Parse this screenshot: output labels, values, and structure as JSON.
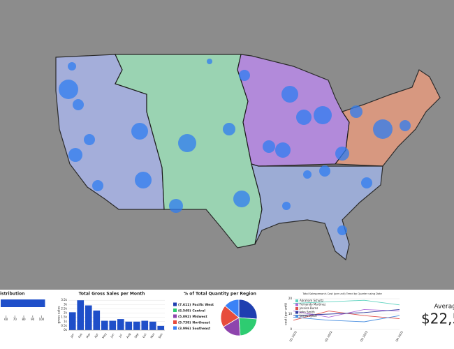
{
  "chart_data": [
    {
      "type": "hbar",
      "title": "istribution",
      "values": [
        104
      ],
      "color": "#1f4fc9",
      "xlim": [
        54,
        106
      ],
      "xticks": [
        60,
        70,
        80,
        90,
        100
      ]
    },
    {
      "type": "bar",
      "title": "Total Gross Sales per Month",
      "y_label": "gross sales",
      "color": "#1f4fc9",
      "categories": [
        "Jan",
        "Feb",
        "Mar",
        "Apr",
        "May",
        "Jun",
        "Jul",
        "Aug",
        "Sep",
        "Oct",
        "Nov",
        "Dec"
      ],
      "values": [
        2100,
        3500,
        2900,
        2300,
        1100,
        1100,
        1300,
        1000,
        1000,
        1100,
        1000,
        500
      ],
      "ylim": [
        0,
        3600
      ],
      "yticks": [
        {
          "value": 0,
          "label": "0k"
        },
        {
          "value": 500,
          "label": "0.5k"
        },
        {
          "value": 1000,
          "label": "1k"
        },
        {
          "value": 1500,
          "label": "1.5k"
        },
        {
          "value": 2000,
          "label": "2k"
        },
        {
          "value": 2500,
          "label": "2.5k"
        },
        {
          "value": 3000,
          "label": "3k"
        },
        {
          "value": 3500,
          "label": "3.5k"
        }
      ]
    },
    {
      "type": "pie",
      "title": "% of Total Quantity per Region",
      "categories": [
        "Pacific West",
        "Central",
        "Midwest",
        "Northeast",
        "Southeast"
      ],
      "values": [
        7.611,
        6.549,
        5.092,
        5.738,
        3.996
      ],
      "value_labels": [
        "(7.611)",
        "(6.549)",
        "(5.092)",
        "(5.738)",
        "(3.996)"
      ],
      "colors": [
        "#1f3fb0",
        "#2ecc71",
        "#8e44ad",
        "#e74c3c",
        "#3b82f6"
      ]
    },
    {
      "type": "line",
      "title": "Total Salesperson's Cost (per unit) Trend by Quarter using Date",
      "y_label": "cost (per unit)",
      "categories": [
        "Q1 2022",
        "Q2 2022",
        "Q3 2022",
        "Q4 2022"
      ],
      "ylim": [
        0,
        20
      ],
      "yticks": [
        0,
        10,
        20
      ],
      "series": [
        {
          "name": "Abraham Schultz",
          "color": "#5fd3c0",
          "values": [
            17,
            18,
            19,
            16
          ]
        },
        {
          "name": "Fernando Martinez",
          "color": "#b06ad9",
          "values": [
            12,
            8,
            13,
            12
          ]
        },
        {
          "name": "Jessica Burns",
          "color": "#e0504c",
          "values": [
            6,
            12,
            9,
            7
          ]
        },
        {
          "name": "John Smith",
          "color": "#333ea0",
          "values": [
            9,
            10,
            11,
            13
          ]
        },
        {
          "name": "James Lynch",
          "color": "#4a8fe0",
          "values": [
            8,
            6,
            5,
            9
          ]
        }
      ]
    }
  ],
  "kpi": {
    "label": "Average",
    "value_text": "$22,5"
  }
}
